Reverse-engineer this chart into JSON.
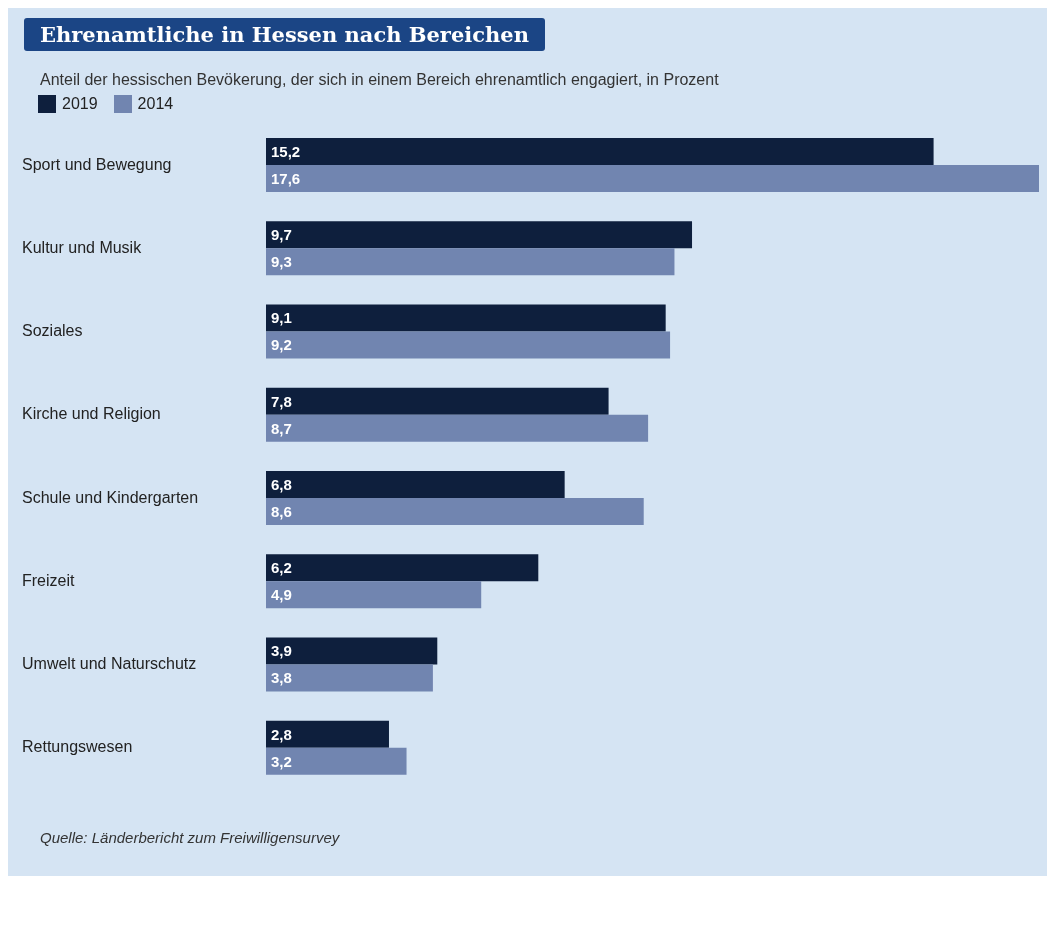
{
  "chart_data": {
    "type": "bar",
    "orientation": "horizontal",
    "title": "Ehrenamtliche in Hessen nach Bereichen",
    "subtitle": "Anteil der hessischen Bevökerung, der sich in einem Bereich ehrenamtlich engagiert, in Prozent",
    "categories": [
      "Sport und Bewegung",
      "Kultur und Musik",
      "Soziales",
      "Kirche und Religion",
      "Schule und Kindergarten",
      "Freizeit",
      "Umwelt und Naturschutz",
      "Rettungswesen"
    ],
    "series": [
      {
        "name": "2019",
        "color": "#0e1f3d",
        "values": [
          15.2,
          9.7,
          9.1,
          7.8,
          6.8,
          6.2,
          3.9,
          2.8
        ],
        "value_labels": [
          "15,2",
          "9,7",
          "9,1",
          "7,8",
          "6,8",
          "6,2",
          "3,9",
          "2,8"
        ]
      },
      {
        "name": "2014",
        "color": "#7185b0",
        "values": [
          17.6,
          9.3,
          9.2,
          8.7,
          8.6,
          4.9,
          3.8,
          3.2
        ],
        "value_labels": [
          "17,6",
          "9,3",
          "9,2",
          "8,7",
          "8,6",
          "4,9",
          "3,8",
          "3,2"
        ]
      }
    ],
    "legend": "top left",
    "annotations": [
      "Quelle: Länderbericht zum Freiwilligensurvey"
    ]
  }
}
